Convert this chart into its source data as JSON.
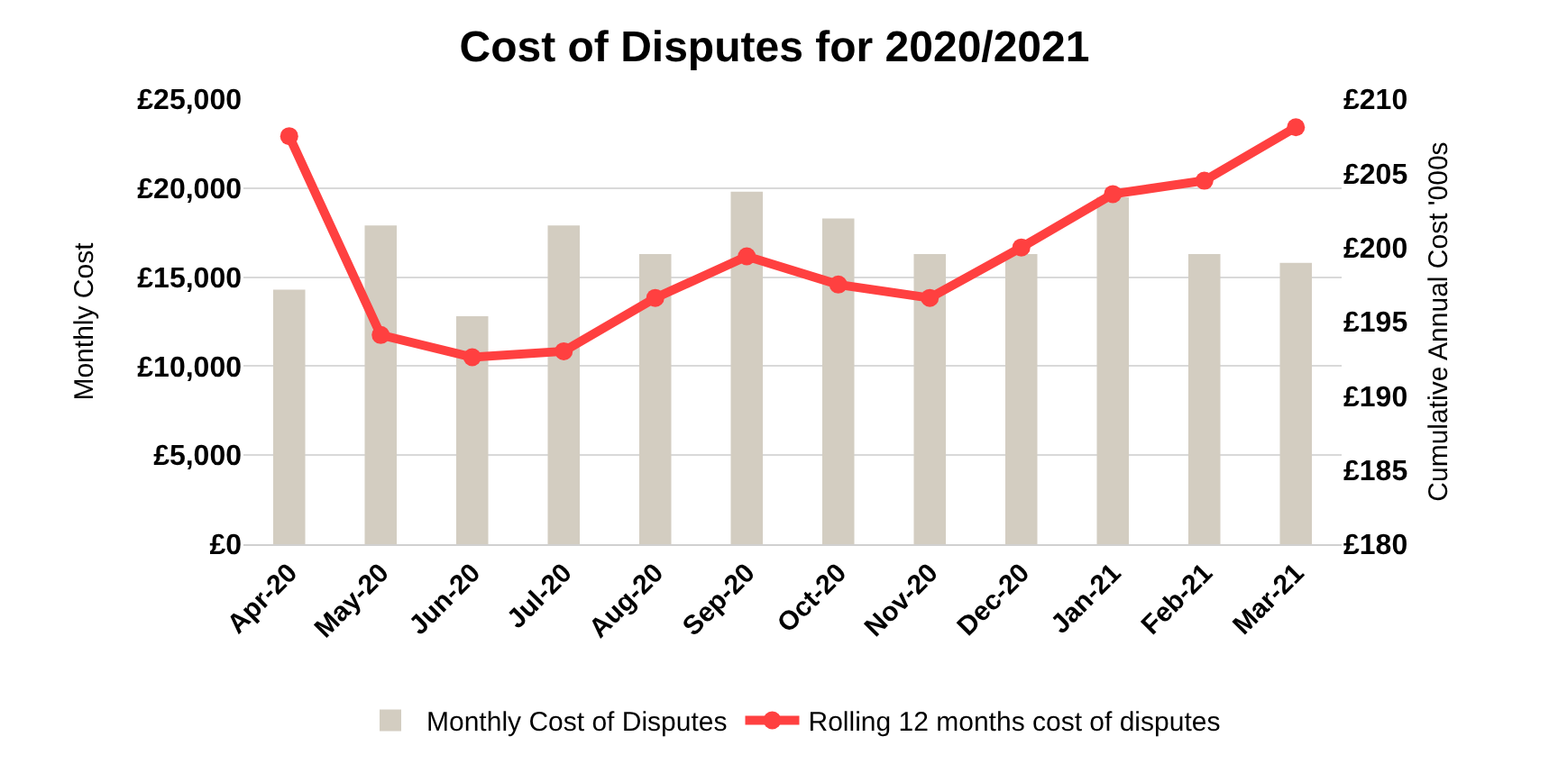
{
  "chart_data": {
    "type": "bar",
    "title": "Cost of Disputes for 2020/2021",
    "ylabel": "Monthly Cost",
    "y2label": "Cumulative Annual Cost '000s",
    "categories": [
      "Apr-20",
      "May-20",
      "Jun-20",
      "Jul-20",
      "Aug-20",
      "Sep-20",
      "Oct-20",
      "Nov-20",
      "Dec-20",
      "Jan-21",
      "Feb-21",
      "Mar-21"
    ],
    "series": [
      {
        "name": "Monthly Cost of Disputes",
        "color": "#d3cdc1",
        "values": [
          14300,
          17900,
          12800,
          17900,
          16300,
          19800,
          18300,
          16300,
          16300,
          19500,
          16300,
          15800
        ]
      },
      {
        "name": "Rolling 12 months cost of disputes",
        "type": "line",
        "axis": "y2",
        "color": "#ff4040",
        "marker": "circle",
        "values": [
          207.5,
          194.1,
          192.6,
          193.0,
          196.6,
          199.4,
          197.5,
          196.6,
          200.0,
          203.6,
          204.5,
          208.1
        ]
      }
    ],
    "ylim": [
      0,
      25000
    ],
    "yticks": [
      {
        "value": 0,
        "label": "£0"
      },
      {
        "value": 5000,
        "label": "£5,000"
      },
      {
        "value": 10000,
        "label": "£10,000"
      },
      {
        "value": 15000,
        "label": "£15,000"
      },
      {
        "value": 20000,
        "label": "£20,000"
      },
      {
        "value": 25000,
        "label": "£25,000"
      }
    ],
    "y2lim": [
      180,
      210
    ],
    "y2ticks": [
      {
        "value": 180,
        "label": "£180"
      },
      {
        "value": 185,
        "label": "£185"
      },
      {
        "value": 190,
        "label": "£190"
      },
      {
        "value": 195,
        "label": "£195"
      },
      {
        "value": 200,
        "label": "£200"
      },
      {
        "value": 205,
        "label": "£205"
      },
      {
        "value": 210,
        "label": "£210"
      }
    ],
    "grid": "y",
    "legend": "bottom"
  }
}
